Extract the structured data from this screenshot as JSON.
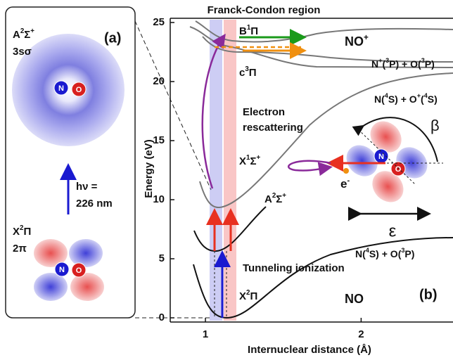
{
  "panel_a": {
    "tag": "(a)",
    "upper_state": [
      "A",
      "2",
      "Σ",
      "+"
    ],
    "upper_orbital": "3sσ",
    "photon_line1": "hν =",
    "photon_line2": "226 nm",
    "lower_state": [
      "X",
      "2",
      "Π"
    ],
    "lower_orbital": "2π",
    "atom_n": "N",
    "atom_o": "O"
  },
  "panel_b": {
    "tag": "(b)",
    "top_label": "Franck-Condon region",
    "y_title": "Energy (eV)",
    "x_title": "Internuclear distance (Å)",
    "ylim": [
      0,
      25
    ],
    "yticks": [
      0,
      5,
      10,
      15,
      20,
      25
    ],
    "xlim": [
      0.774,
      2.59
    ],
    "xticks": [
      1,
      2
    ],
    "labels": {
      "b1pi": [
        "B",
        "1",
        "Π"
      ],
      "c3pi": [
        "c",
        "3",
        "Π"
      ],
      "nop": [
        "NO",
        "+"
      ],
      "lim1": [
        "N",
        "+",
        "(",
        "3",
        "P) + O(",
        "3",
        "P)"
      ],
      "lim2": [
        "N(",
        "4",
        "S) + O",
        "+",
        "(",
        "4",
        "S)"
      ],
      "x1sig": [
        "X",
        "1",
        "Σ",
        "+"
      ],
      "a2sig": [
        "A",
        "2",
        "Σ",
        "+"
      ],
      "lim3": [
        "N(",
        "4",
        "S) + O(",
        "3",
        "P)"
      ],
      "x2pi": [
        "X",
        "2",
        "Π"
      ],
      "no": [
        "NO"
      ],
      "electron": [
        "e",
        "-"
      ]
    },
    "rescatter1": "Electron",
    "rescatter2": "rescattering",
    "tunneling": "Tunneling ionization",
    "beta": "β",
    "epsilon": "ε",
    "atom_n": "N",
    "atom_o": "O"
  }
}
